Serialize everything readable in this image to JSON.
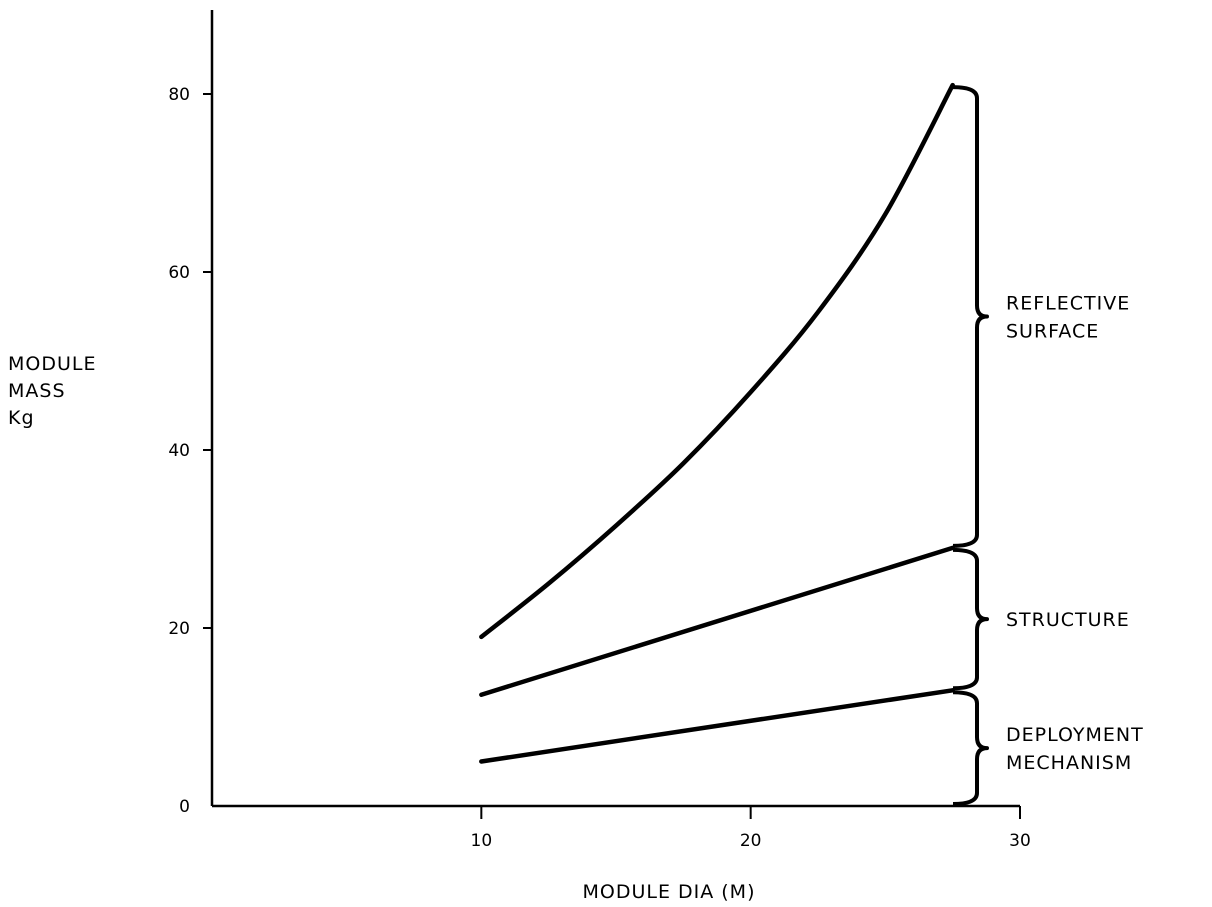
{
  "chart_data": {
    "type": "area",
    "title": "",
    "xlabel": "MODULE DIA (M)",
    "ylabel": [
      "MODULE",
      "MASS",
      "Kg"
    ],
    "xlim": [
      0,
      30
    ],
    "ylim": [
      0,
      80
    ],
    "xticks": [
      10,
      20,
      30
    ],
    "yticks": [
      0,
      20,
      40,
      60,
      80
    ],
    "grid": false,
    "curves": [
      {
        "name": "DEPLOYMENT MECHANISM",
        "x": [
          10,
          27.5
        ],
        "y": [
          5,
          13
        ]
      },
      {
        "name": "STRUCTURE",
        "x": [
          10,
          27.5
        ],
        "y": [
          12.5,
          29
        ]
      },
      {
        "name": "REFLECTIVE SURFACE",
        "x": [
          10,
          12.5,
          15,
          17.5,
          20,
          22.5,
          25,
          27.5
        ],
        "y": [
          19,
          25,
          31.5,
          38.5,
          46.5,
          55.5,
          66.5,
          81
        ]
      }
    ],
    "bands": [
      {
        "lines": [
          "REFLECTIVE",
          "SURFACE"
        ],
        "from": 29,
        "to": 81
      },
      {
        "lines": [
          "STRUCTURE"
        ],
        "from": 13,
        "to": 29
      },
      {
        "lines": [
          "DEPLOYMENT",
          "MECHANISM"
        ],
        "from": 0,
        "to": 13
      }
    ],
    "colors": {
      "line": "#000000",
      "background": "#ffffff"
    }
  }
}
